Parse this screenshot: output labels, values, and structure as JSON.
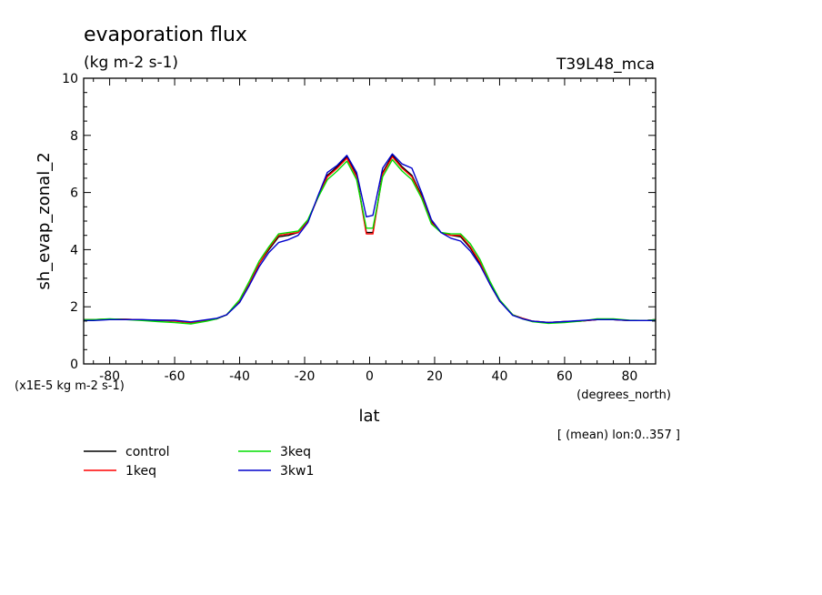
{
  "header": {
    "title": "evaporation flux",
    "units": "(kg m-2 s-1)",
    "experiment": "T39L48_mca"
  },
  "chart_data": {
    "type": "line",
    "ylabel": "sh_evap_zonal_2",
    "xlabel": "lat",
    "x_units": "(degrees_north)",
    "y_scale_label": "(x1E-5 kg m-2 s-1)",
    "note": "[ (mean) lon:0..357 ]",
    "xlim": [
      -88,
      88
    ],
    "ylim": [
      0,
      10
    ],
    "x_ticks": [
      -80,
      -60,
      -40,
      -20,
      0,
      20,
      40,
      60,
      80
    ],
    "y_ticks": [
      0,
      2,
      4,
      6,
      8,
      10
    ],
    "x_tick_labels": [
      "-80",
      "-60",
      "-40",
      "-20",
      "0",
      "20",
      "40",
      "60",
      "80"
    ],
    "y_tick_labels": [
      "0",
      "2",
      "4",
      "6",
      "8",
      "10"
    ],
    "grid": false,
    "legend_position": "bottom-left",
    "x": [
      -88,
      -85,
      -80,
      -75,
      -70,
      -65,
      -60,
      -55,
      -50,
      -47,
      -44,
      -40,
      -37,
      -34,
      -31,
      -28,
      -25,
      -22,
      -19,
      -16,
      -13,
      -10,
      -7,
      -4,
      -1,
      1,
      4,
      7,
      10,
      13,
      16,
      19,
      22,
      25,
      28,
      31,
      34,
      37,
      40,
      44,
      47,
      50,
      55,
      60,
      65,
      70,
      75,
      80,
      85,
      88
    ],
    "series": [
      {
        "name": "control",
        "color": "#000000",
        "values": [
          1.55,
          1.55,
          1.57,
          1.56,
          1.54,
          1.53,
          1.52,
          1.45,
          1.52,
          1.58,
          1.72,
          2.2,
          2.8,
          3.5,
          4.0,
          4.45,
          4.5,
          4.6,
          5.0,
          5.8,
          6.6,
          6.9,
          7.25,
          6.6,
          4.6,
          4.6,
          6.7,
          7.3,
          6.9,
          6.6,
          5.9,
          5.0,
          4.6,
          4.5,
          4.45,
          4.05,
          3.5,
          2.8,
          2.2,
          1.72,
          1.6,
          1.5,
          1.45,
          1.48,
          1.5,
          1.55,
          1.55,
          1.52,
          1.52,
          1.55
        ]
      },
      {
        "name": "1keq",
        "color": "#ff0000",
        "values": [
          1.55,
          1.55,
          1.57,
          1.56,
          1.54,
          1.52,
          1.5,
          1.44,
          1.52,
          1.58,
          1.72,
          2.2,
          2.8,
          3.5,
          4.05,
          4.5,
          4.55,
          4.6,
          5.0,
          5.8,
          6.55,
          6.85,
          7.2,
          6.55,
          4.55,
          4.55,
          6.65,
          7.25,
          6.85,
          6.55,
          5.85,
          4.95,
          4.6,
          4.5,
          4.5,
          4.1,
          3.55,
          2.8,
          2.2,
          1.72,
          1.6,
          1.5,
          1.45,
          1.48,
          1.5,
          1.55,
          1.55,
          1.52,
          1.52,
          1.55
        ]
      },
      {
        "name": "3keq",
        "color": "#00dd00",
        "values": [
          1.55,
          1.55,
          1.58,
          1.55,
          1.52,
          1.48,
          1.45,
          1.4,
          1.5,
          1.58,
          1.72,
          2.25,
          2.9,
          3.6,
          4.1,
          4.55,
          4.6,
          4.65,
          5.05,
          5.8,
          6.45,
          6.75,
          7.1,
          6.45,
          4.75,
          4.75,
          6.55,
          7.15,
          6.75,
          6.45,
          5.8,
          4.9,
          4.6,
          4.55,
          4.55,
          4.2,
          3.65,
          2.9,
          2.25,
          1.72,
          1.58,
          1.48,
          1.42,
          1.45,
          1.5,
          1.58,
          1.58,
          1.53,
          1.52,
          1.55
        ]
      },
      {
        "name": "3kw1",
        "color": "#0000cc",
        "values": [
          1.52,
          1.52,
          1.55,
          1.55,
          1.55,
          1.53,
          1.53,
          1.47,
          1.55,
          1.6,
          1.72,
          2.15,
          2.75,
          3.4,
          3.9,
          4.25,
          4.35,
          4.5,
          4.95,
          5.85,
          6.7,
          6.95,
          7.3,
          6.7,
          5.15,
          5.2,
          6.85,
          7.35,
          7.0,
          6.85,
          6.0,
          5.05,
          4.6,
          4.4,
          4.3,
          3.95,
          3.45,
          2.8,
          2.2,
          1.7,
          1.58,
          1.5,
          1.45,
          1.48,
          1.52,
          1.55,
          1.55,
          1.52,
          1.52,
          1.52
        ]
      }
    ]
  }
}
